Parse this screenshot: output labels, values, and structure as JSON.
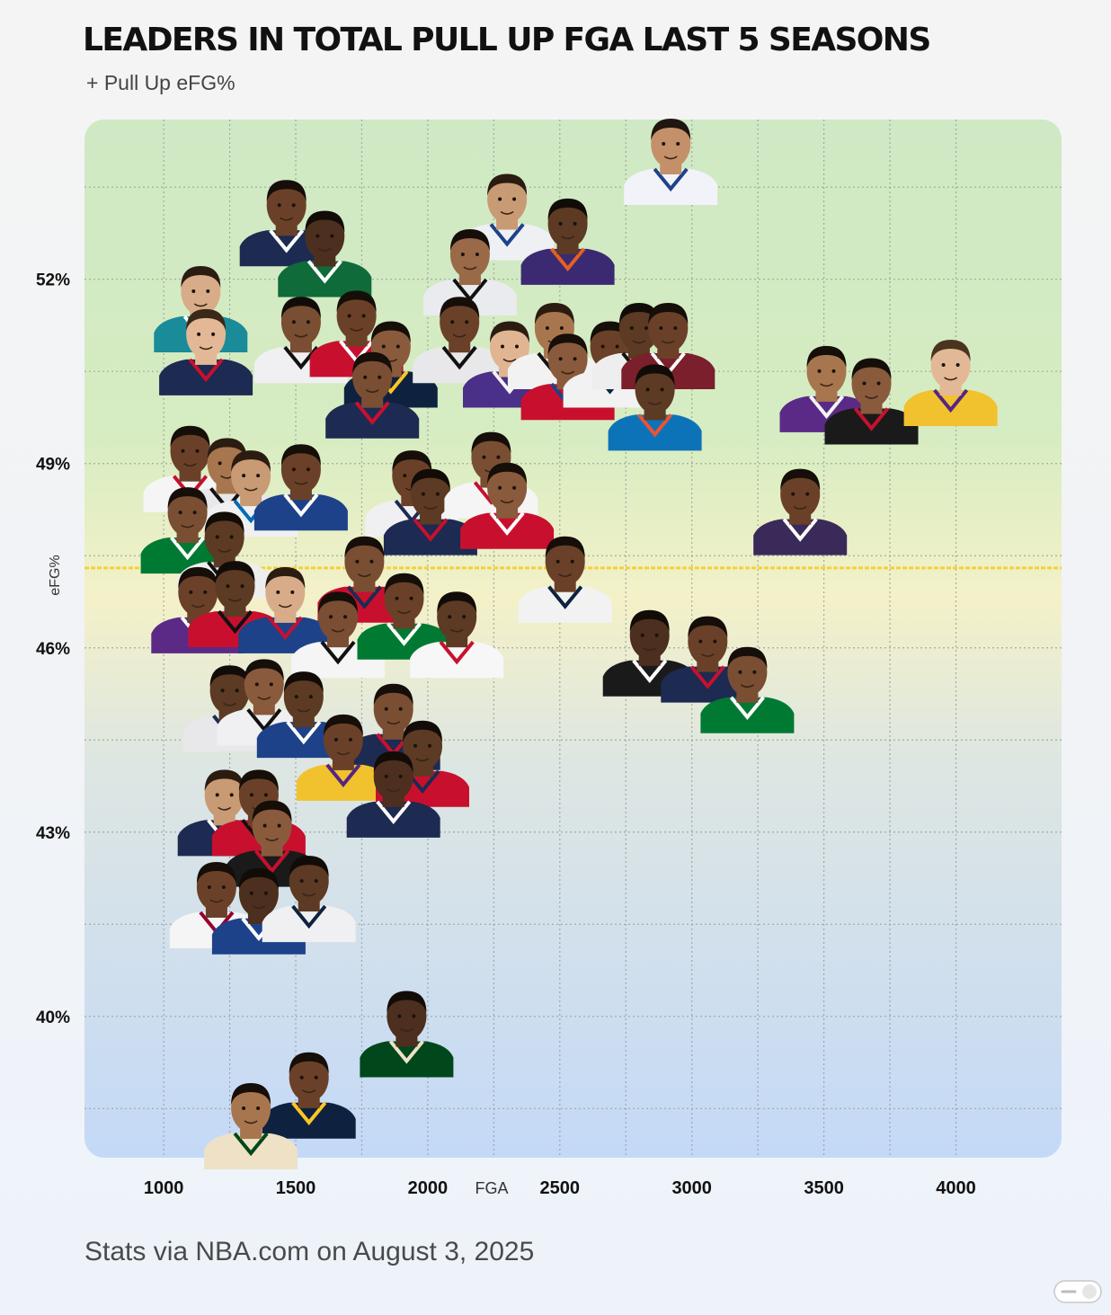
{
  "chart_data": {
    "type": "scatter",
    "title": "LEADERS IN TOTAL PULL UP FGA LAST 5 SEASONS",
    "subtitle": "+ Pull Up eFG%",
    "xlabel": "FGA",
    "ylabel": "eFG%",
    "xlim": [
      700,
      4400
    ],
    "ylim": [
      37.7,
      54.6
    ],
    "xticks": [
      1000,
      1500,
      2000,
      2500,
      3000,
      3500,
      4000
    ],
    "xtick_labels": [
      "1000",
      "1500",
      "2000",
      "2500",
      "3000",
      "3500",
      "4000"
    ],
    "yticks": [
      40,
      43,
      46,
      49,
      52
    ],
    "ytick_labels": [
      "40%",
      "43%",
      "46%",
      "49%",
      "52%"
    ],
    "reference_line_y": 47.3,
    "grid": true,
    "marker": "player-headshot",
    "points": [
      {
        "x": 2920,
        "y": 54.0,
        "jersey": "#f2f3f8",
        "trim": "#1d428a",
        "skin": "#c4906a",
        "hair": "#1e1610"
      },
      {
        "x": 1465,
        "y": 53.0,
        "jersey": "#1d2a52",
        "trim": "#ffffff",
        "skin": "#6a4128",
        "hair": "#150e09"
      },
      {
        "x": 2300,
        "y": 53.1,
        "jersey": "#eef0f3",
        "trim": "#1d428a",
        "skin": "#c89b74",
        "hair": "#2b1c12"
      },
      {
        "x": 2530,
        "y": 52.7,
        "jersey": "#3b2a72",
        "trim": "#e56020",
        "skin": "#5c3a24",
        "hair": "#120c08"
      },
      {
        "x": 2160,
        "y": 52.2,
        "jersey": "#e9ebee",
        "trim": "#111111",
        "skin": "#9a6a48",
        "hair": "#150e09"
      },
      {
        "x": 1610,
        "y": 52.5,
        "jersey": "#0f6b3a",
        "trim": "#ffffff",
        "skin": "#4c2f1e",
        "hair": "#120c08"
      },
      {
        "x": 1140,
        "y": 51.6,
        "jersey": "#1a8b99",
        "trim": "#ffffff",
        "skin": "#d8ac88",
        "hair": "#2b1c12"
      },
      {
        "x": 1160,
        "y": 50.9,
        "jersey": "#1d2a52",
        "trim": "#c8102e",
        "skin": "#e3b896",
        "hair": "#3a2818"
      },
      {
        "x": 1520,
        "y": 51.1,
        "jersey": "#f0f0f2",
        "trim": "#111111",
        "skin": "#7a4e32",
        "hair": "#120c08"
      },
      {
        "x": 1730,
        "y": 51.2,
        "jersey": "#c8102e",
        "trim": "#ffffff",
        "skin": "#6a4128",
        "hair": "#150e09"
      },
      {
        "x": 1860,
        "y": 50.7,
        "jersey": "#0e2240",
        "trim": "#fec524",
        "skin": "#8a5a3c",
        "hair": "#150e09"
      },
      {
        "x": 2120,
        "y": 51.1,
        "jersey": "#e8e8ea",
        "trim": "#111111",
        "skin": "#6a4128",
        "hair": "#150e09"
      },
      {
        "x": 2310,
        "y": 50.7,
        "jersey": "#4a3088",
        "trim": "#f5f5f5",
        "skin": "#e0b592",
        "hair": "#2b1c12"
      },
      {
        "x": 2480,
        "y": 51.0,
        "jersey": "#f2f2f2",
        "trim": "#111111",
        "skin": "#a8764e",
        "hair": "#2b1c12"
      },
      {
        "x": 2530,
        "y": 50.5,
        "jersey": "#c8102e",
        "trim": "#1d428a",
        "skin": "#8a5a3c",
        "hair": "#150e09"
      },
      {
        "x": 2690,
        "y": 50.7,
        "jersey": "#f2f2f2",
        "trim": "#0c2340",
        "skin": "#6a4128",
        "hair": "#150e09"
      },
      {
        "x": 2800,
        "y": 51.0,
        "jersey": "#eeeeee",
        "trim": "#111111",
        "skin": "#5c3a24",
        "hair": "#120c08"
      },
      {
        "x": 2910,
        "y": 51.0,
        "jersey": "#7a1f2b",
        "trim": "#ffffff",
        "skin": "#6a4128",
        "hair": "#150e09"
      },
      {
        "x": 2860,
        "y": 50.0,
        "jersey": "#0d73b8",
        "trim": "#f05133",
        "skin": "#5c3a24",
        "hair": "#120c08"
      },
      {
        "x": 1790,
        "y": 50.2,
        "jersey": "#1d2a52",
        "trim": "#c8102e",
        "skin": "#7a4e32",
        "hair": "#150e09"
      },
      {
        "x": 3510,
        "y": 50.3,
        "jersey": "#5b2a86",
        "trim": "#f5f5f5",
        "skin": "#a8764e",
        "hair": "#150e09"
      },
      {
        "x": 3680,
        "y": 50.1,
        "jersey": "#1a1a1a",
        "trim": "#c8102e",
        "skin": "#8a5a3c",
        "hair": "#150e09"
      },
      {
        "x": 3980,
        "y": 50.4,
        "jersey": "#f2c12e",
        "trim": "#552583",
        "skin": "#e3b896",
        "hair": "#4a3420"
      },
      {
        "x": 1100,
        "y": 49.0,
        "jersey": "#f5f5f5",
        "trim": "#c8102e",
        "skin": "#6a4128",
        "hair": "#150e09"
      },
      {
        "x": 1240,
        "y": 48.8,
        "jersey": "#e8e8ea",
        "trim": "#111111",
        "skin": "#a8764e",
        "hair": "#2b1c12"
      },
      {
        "x": 1330,
        "y": 48.6,
        "jersey": "#f0f0f2",
        "trim": "#006bb6",
        "skin": "#c89b74",
        "hair": "#2b1c12"
      },
      {
        "x": 1520,
        "y": 48.7,
        "jersey": "#1d428a",
        "trim": "#ffffff",
        "skin": "#6a4128",
        "hair": "#150e09"
      },
      {
        "x": 1090,
        "y": 48.0,
        "jersey": "#007a33",
        "trim": "#ffffff",
        "skin": "#7a4e32",
        "hair": "#150e09"
      },
      {
        "x": 1230,
        "y": 47.6,
        "jersey": "#eeeeee",
        "trim": "#111111",
        "skin": "#5c3a24",
        "hair": "#120c08"
      },
      {
        "x": 1940,
        "y": 48.6,
        "jersey": "#f0f0f2",
        "trim": "#1d2a52",
        "skin": "#6a4128",
        "hair": "#150e09"
      },
      {
        "x": 2010,
        "y": 48.3,
        "jersey": "#1d2a52",
        "trim": "#c8102e",
        "skin": "#5c3a24",
        "hair": "#120c08"
      },
      {
        "x": 2240,
        "y": 48.9,
        "jersey": "#f5f5f5",
        "trim": "#c8102e",
        "skin": "#7a4e32",
        "hair": "#150e09"
      },
      {
        "x": 2300,
        "y": 48.4,
        "jersey": "#c8102e",
        "trim": "#ffffff",
        "skin": "#8a5a3c",
        "hair": "#150e09"
      },
      {
        "x": 3410,
        "y": 48.3,
        "jersey": "#3a2a5a",
        "trim": "#ffffff",
        "skin": "#6a4128",
        "hair": "#150e09"
      },
      {
        "x": 2520,
        "y": 47.2,
        "jersey": "#f2f2f2",
        "trim": "#0c2340",
        "skin": "#6a4128",
        "hair": "#150e09"
      },
      {
        "x": 1760,
        "y": 47.2,
        "jersey": "#c8102e",
        "trim": "#1d2a52",
        "skin": "#7a4e32",
        "hair": "#150e09"
      },
      {
        "x": 1130,
        "y": 46.7,
        "jersey": "#5b2a86",
        "trim": "#ffffff",
        "skin": "#6a4128",
        "hair": "#150e09"
      },
      {
        "x": 1270,
        "y": 46.8,
        "jersey": "#c8102e",
        "trim": "#111111",
        "skin": "#5c3a24",
        "hair": "#120c08"
      },
      {
        "x": 1460,
        "y": 46.7,
        "jersey": "#1d428a",
        "trim": "#c8102e",
        "skin": "#d8ac88",
        "hair": "#2b1c12"
      },
      {
        "x": 1660,
        "y": 46.3,
        "jersey": "#f5f5f5",
        "trim": "#111111",
        "skin": "#7a4e32",
        "hair": "#150e09"
      },
      {
        "x": 1910,
        "y": 46.6,
        "jersey": "#007a33",
        "trim": "#ffffff",
        "skin": "#6a4128",
        "hair": "#150e09"
      },
      {
        "x": 2110,
        "y": 46.3,
        "jersey": "#f7f7f7",
        "trim": "#c8102e",
        "skin": "#5c3a24",
        "hair": "#120c08"
      },
      {
        "x": 2840,
        "y": 46.0,
        "jersey": "#1a1a1a",
        "trim": "#ffffff",
        "skin": "#4c2f1e",
        "hair": "#120c08"
      },
      {
        "x": 3060,
        "y": 45.9,
        "jersey": "#1d2a52",
        "trim": "#c8102e",
        "skin": "#6a4128",
        "hair": "#150e09"
      },
      {
        "x": 3210,
        "y": 45.4,
        "jersey": "#007a33",
        "trim": "#ffffff",
        "skin": "#7a4e32",
        "hair": "#150e09"
      },
      {
        "x": 1250,
        "y": 45.1,
        "jersey": "#e8e8ea",
        "trim": "#1d2a52",
        "skin": "#5c3a24",
        "hair": "#120c08"
      },
      {
        "x": 1380,
        "y": 45.2,
        "jersey": "#f0f0f2",
        "trim": "#111111",
        "skin": "#8a5a3c",
        "hair": "#150e09"
      },
      {
        "x": 1530,
        "y": 45.0,
        "jersey": "#1d428a",
        "trim": "#ffffff",
        "skin": "#5c3a24",
        "hair": "#120c08"
      },
      {
        "x": 1870,
        "y": 44.8,
        "jersey": "#1d2a52",
        "trim": "#c8102e",
        "skin": "#7a4e32",
        "hair": "#150e09"
      },
      {
        "x": 1680,
        "y": 44.3,
        "jersey": "#f2c12e",
        "trim": "#552583",
        "skin": "#6a4128",
        "hair": "#150e09"
      },
      {
        "x": 1980,
        "y": 44.2,
        "jersey": "#c8102e",
        "trim": "#1d2a52",
        "skin": "#5c3a24",
        "hair": "#120c08"
      },
      {
        "x": 1870,
        "y": 43.7,
        "jersey": "#1d2a52",
        "trim": "#ffffff",
        "skin": "#4c2f1e",
        "hair": "#120c08"
      },
      {
        "x": 1230,
        "y": 43.4,
        "jersey": "#1d2a52",
        "trim": "#ffffff",
        "skin": "#c89b74",
        "hair": "#2b1c12"
      },
      {
        "x": 1360,
        "y": 43.4,
        "jersey": "#c8102e",
        "trim": "#111111",
        "skin": "#6a4128",
        "hair": "#150e09"
      },
      {
        "x": 1410,
        "y": 42.9,
        "jersey": "#1a1a1a",
        "trim": "#c8102e",
        "skin": "#8a5a3c",
        "hair": "#150e09"
      },
      {
        "x": 1200,
        "y": 41.9,
        "jersey": "#f5f5f5",
        "trim": "#98002e",
        "skin": "#6a4128",
        "hair": "#150e09"
      },
      {
        "x": 1360,
        "y": 41.8,
        "jersey": "#1d428a",
        "trim": "#ffffff",
        "skin": "#4c2f1e",
        "hair": "#120c08"
      },
      {
        "x": 1550,
        "y": 42.0,
        "jersey": "#f0f0f2",
        "trim": "#0e2240",
        "skin": "#5c3a24",
        "hair": "#120c08"
      },
      {
        "x": 1920,
        "y": 39.8,
        "jersey": "#00471b",
        "trim": "#eee1c6",
        "skin": "#4c2f1e",
        "hair": "#120c08"
      },
      {
        "x": 1550,
        "y": 38.8,
        "jersey": "#0e2240",
        "trim": "#fec524",
        "skin": "#6a4128",
        "hair": "#150e09"
      },
      {
        "x": 1330,
        "y": 38.3,
        "jersey": "#eee1c6",
        "trim": "#00471b",
        "skin": "#a8764e",
        "hair": "#150e09"
      }
    ]
  },
  "footer": {
    "source": "Stats via NBA.com on August 3, 2025"
  },
  "colors": {
    "plot_top": "#cfe9c4",
    "plot_mid": "#f4f1c8",
    "plot_bottom": "#c4d9f7",
    "reference_line": "#f2d23a",
    "grid": "#8f9496"
  }
}
